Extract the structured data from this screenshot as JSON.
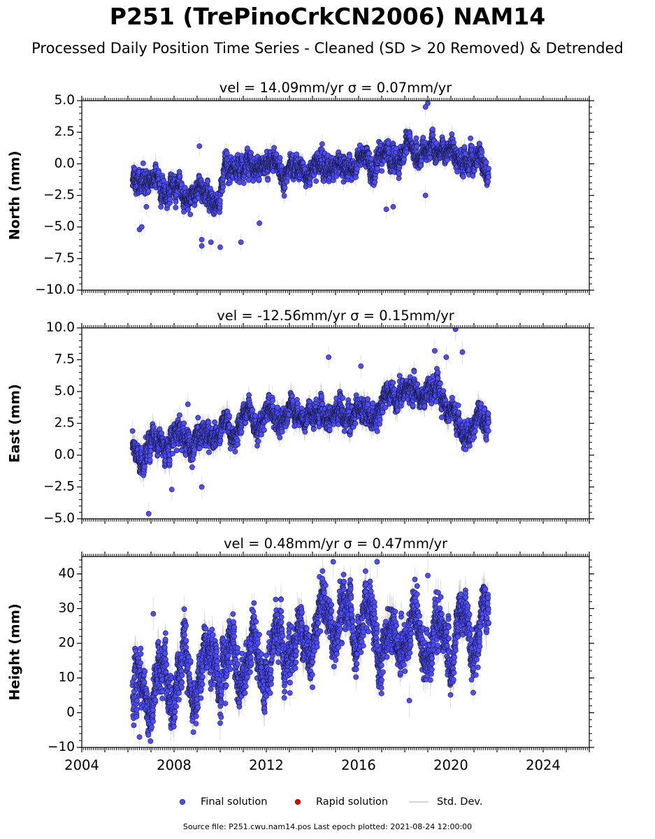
{
  "title": "P251 (TrePinoCrkCN2006) NAM14",
  "subtitle": "Processed Daily Position Time Series - Cleaned (SD > 20 Removed) & Detrended",
  "footer": "Source file: P251.cwu.nam14.pos  Last epoch plotted: 2021-08-24 12:00:00",
  "colors": {
    "final": "#4d4dff",
    "rapid": "#e00000",
    "std": "#c8c8c8",
    "marker_edge": "#1a1a40"
  },
  "legend": [
    {
      "label": "Final solution",
      "type": "marker",
      "color": "#4d4dff"
    },
    {
      "label": "Rapid solution",
      "type": "marker",
      "color": "#e00000"
    },
    {
      "label": "Std. Dev.",
      "type": "line",
      "color": "#c8c8c8"
    }
  ],
  "chart_data": [
    {
      "type": "scatter",
      "ylabel": "North (mm)",
      "vel_label": "vel = 14.09mm/yr   σ = 0.07mm/yr",
      "xlim": [
        2004,
        2026
      ],
      "ylim": [
        -10,
        5
      ],
      "yticks": [
        5.0,
        2.5,
        0.0,
        -2.5,
        -5.0,
        -7.5,
        -10.0
      ],
      "ytick_labels": [
        "5.0",
        "2.5",
        "0.0",
        "−2.5",
        "−5.0",
        "−7.5",
        "−10.0"
      ],
      "series_start": 2006.2,
      "series_end": 2021.64,
      "trend_x": [
        2006.2,
        2007.0,
        2008.0,
        2009.0,
        2010.0,
        2010.3,
        2011.0,
        2012.0,
        2013.0,
        2014.0,
        2015.0,
        2016.0,
        2017.0,
        2018.0,
        2019.0,
        2019.5,
        2020.0,
        2021.0,
        2021.64
      ],
      "trend_y": [
        -1.2,
        -1.6,
        -2.2,
        -2.3,
        -2.7,
        -0.5,
        -0.4,
        -0.2,
        -0.3,
        -0.5,
        -0.3,
        0.0,
        0.5,
        0.6,
        0.9,
        1.4,
        0.8,
        0.0,
        -0.3
      ],
      "noise_sd": 0.75,
      "std_scale": 0.45,
      "outliers": [
        [
          2006.5,
          -5.2
        ],
        [
          2006.6,
          -5.0
        ],
        [
          2006.8,
          -3.4
        ],
        [
          2009.2,
          -6.5
        ],
        [
          2009.2,
          -6.0
        ],
        [
          2009.6,
          -6.2
        ],
        [
          2010.0,
          -6.6
        ],
        [
          2010.9,
          -6.2
        ],
        [
          2011.7,
          -4.7
        ],
        [
          2017.2,
          -3.6
        ],
        [
          2017.5,
          -3.4
        ],
        [
          2019.0,
          4.8
        ],
        [
          2018.9,
          4.5
        ],
        [
          2009.1,
          1.4
        ],
        [
          2018.9,
          -2.5
        ]
      ],
      "seed": 11
    },
    {
      "type": "scatter",
      "ylabel": "East (mm)",
      "vel_label": "vel = -12.56mm/yr   σ = 0.15mm/yr",
      "xlim": [
        2004,
        2026
      ],
      "ylim": [
        -5,
        10
      ],
      "yticks": [
        10.0,
        7.5,
        5.0,
        2.5,
        0.0,
        -2.5,
        -5.0
      ],
      "ytick_labels": [
        "10.0",
        "7.5",
        "5.0",
        "2.5",
        "0.0",
        "−2.5",
        "−5.0"
      ],
      "series_start": 2006.2,
      "series_end": 2021.64,
      "trend_x": [
        2006.2,
        2007.0,
        2008.0,
        2009.0,
        2010.0,
        2011.0,
        2012.0,
        2013.0,
        2014.0,
        2015.0,
        2016.0,
        2016.5,
        2017.0,
        2017.5,
        2018.0,
        2019.0,
        2019.5,
        2020.0,
        2020.5,
        2021.0,
        2021.64
      ],
      "trend_y": [
        -0.3,
        0.5,
        1.0,
        1.2,
        1.6,
        2.6,
        3.0,
        3.1,
        3.2,
        3.3,
        3.1,
        2.8,
        3.8,
        5.2,
        4.8,
        4.9,
        5.4,
        3.5,
        1.5,
        2.5,
        2.8
      ],
      "noise_sd": 0.75,
      "std_scale": 0.55,
      "outliers": [
        [
          2006.9,
          -4.6
        ],
        [
          2007.9,
          -2.7
        ],
        [
          2009.2,
          -2.5
        ],
        [
          2008.6,
          4.0
        ],
        [
          2014.7,
          7.7
        ],
        [
          2016.1,
          7.0
        ],
        [
          2019.3,
          8.2
        ],
        [
          2020.2,
          9.9
        ],
        [
          2020.5,
          8.1
        ],
        [
          2019.8,
          7.7
        ],
        [
          2006.2,
          1.9
        ]
      ],
      "seed": 23
    },
    {
      "type": "scatter",
      "ylabel": "Height (mm)",
      "vel_label": "vel = 0.48mm/yr   σ = 0.47mm/yr",
      "xlim": [
        2004,
        2026
      ],
      "ylim": [
        -10,
        45
      ],
      "yticks": [
        40,
        30,
        20,
        10,
        0,
        -10
      ],
      "ytick_labels": [
        "40",
        "30",
        "20",
        "10",
        "0",
        "−10"
      ],
      "series_start": 2006.2,
      "series_end": 2021.64,
      "trend_x": [
        2006.2,
        2008.0,
        2010.0,
        2012.0,
        2013.0,
        2014.0,
        2015.0,
        2016.0,
        2016.5,
        2017.0,
        2018.0,
        2019.0,
        2020.0,
        2021.0,
        2021.64
      ],
      "trend_y": [
        6.0,
        10.0,
        12.0,
        16.0,
        20.0,
        24.0,
        27.0,
        28.0,
        25.0,
        20.0,
        21.0,
        21.0,
        20.0,
        23.0,
        24.0
      ],
      "noise_sd": 6.0,
      "std_scale": 3.0,
      "seasonal_amp": 7.0,
      "outliers": [
        [
          2006.5,
          -7.0
        ],
        [
          2010.0,
          -3.0
        ],
        [
          2011.9,
          2.8
        ],
        [
          2014.9,
          43.5
        ],
        [
          2016.8,
          43.5
        ],
        [
          2019.0,
          39.5
        ],
        [
          2007.1,
          28.5
        ],
        [
          2018.2,
          3.5
        ]
      ],
      "seed": 37
    }
  ],
  "xaxis": {
    "ticks": [
      2004,
      2008,
      2012,
      2016,
      2020,
      2024
    ],
    "tick_labels": [
      "2004",
      "2008",
      "2012",
      "2016",
      "2020",
      "2024"
    ]
  }
}
